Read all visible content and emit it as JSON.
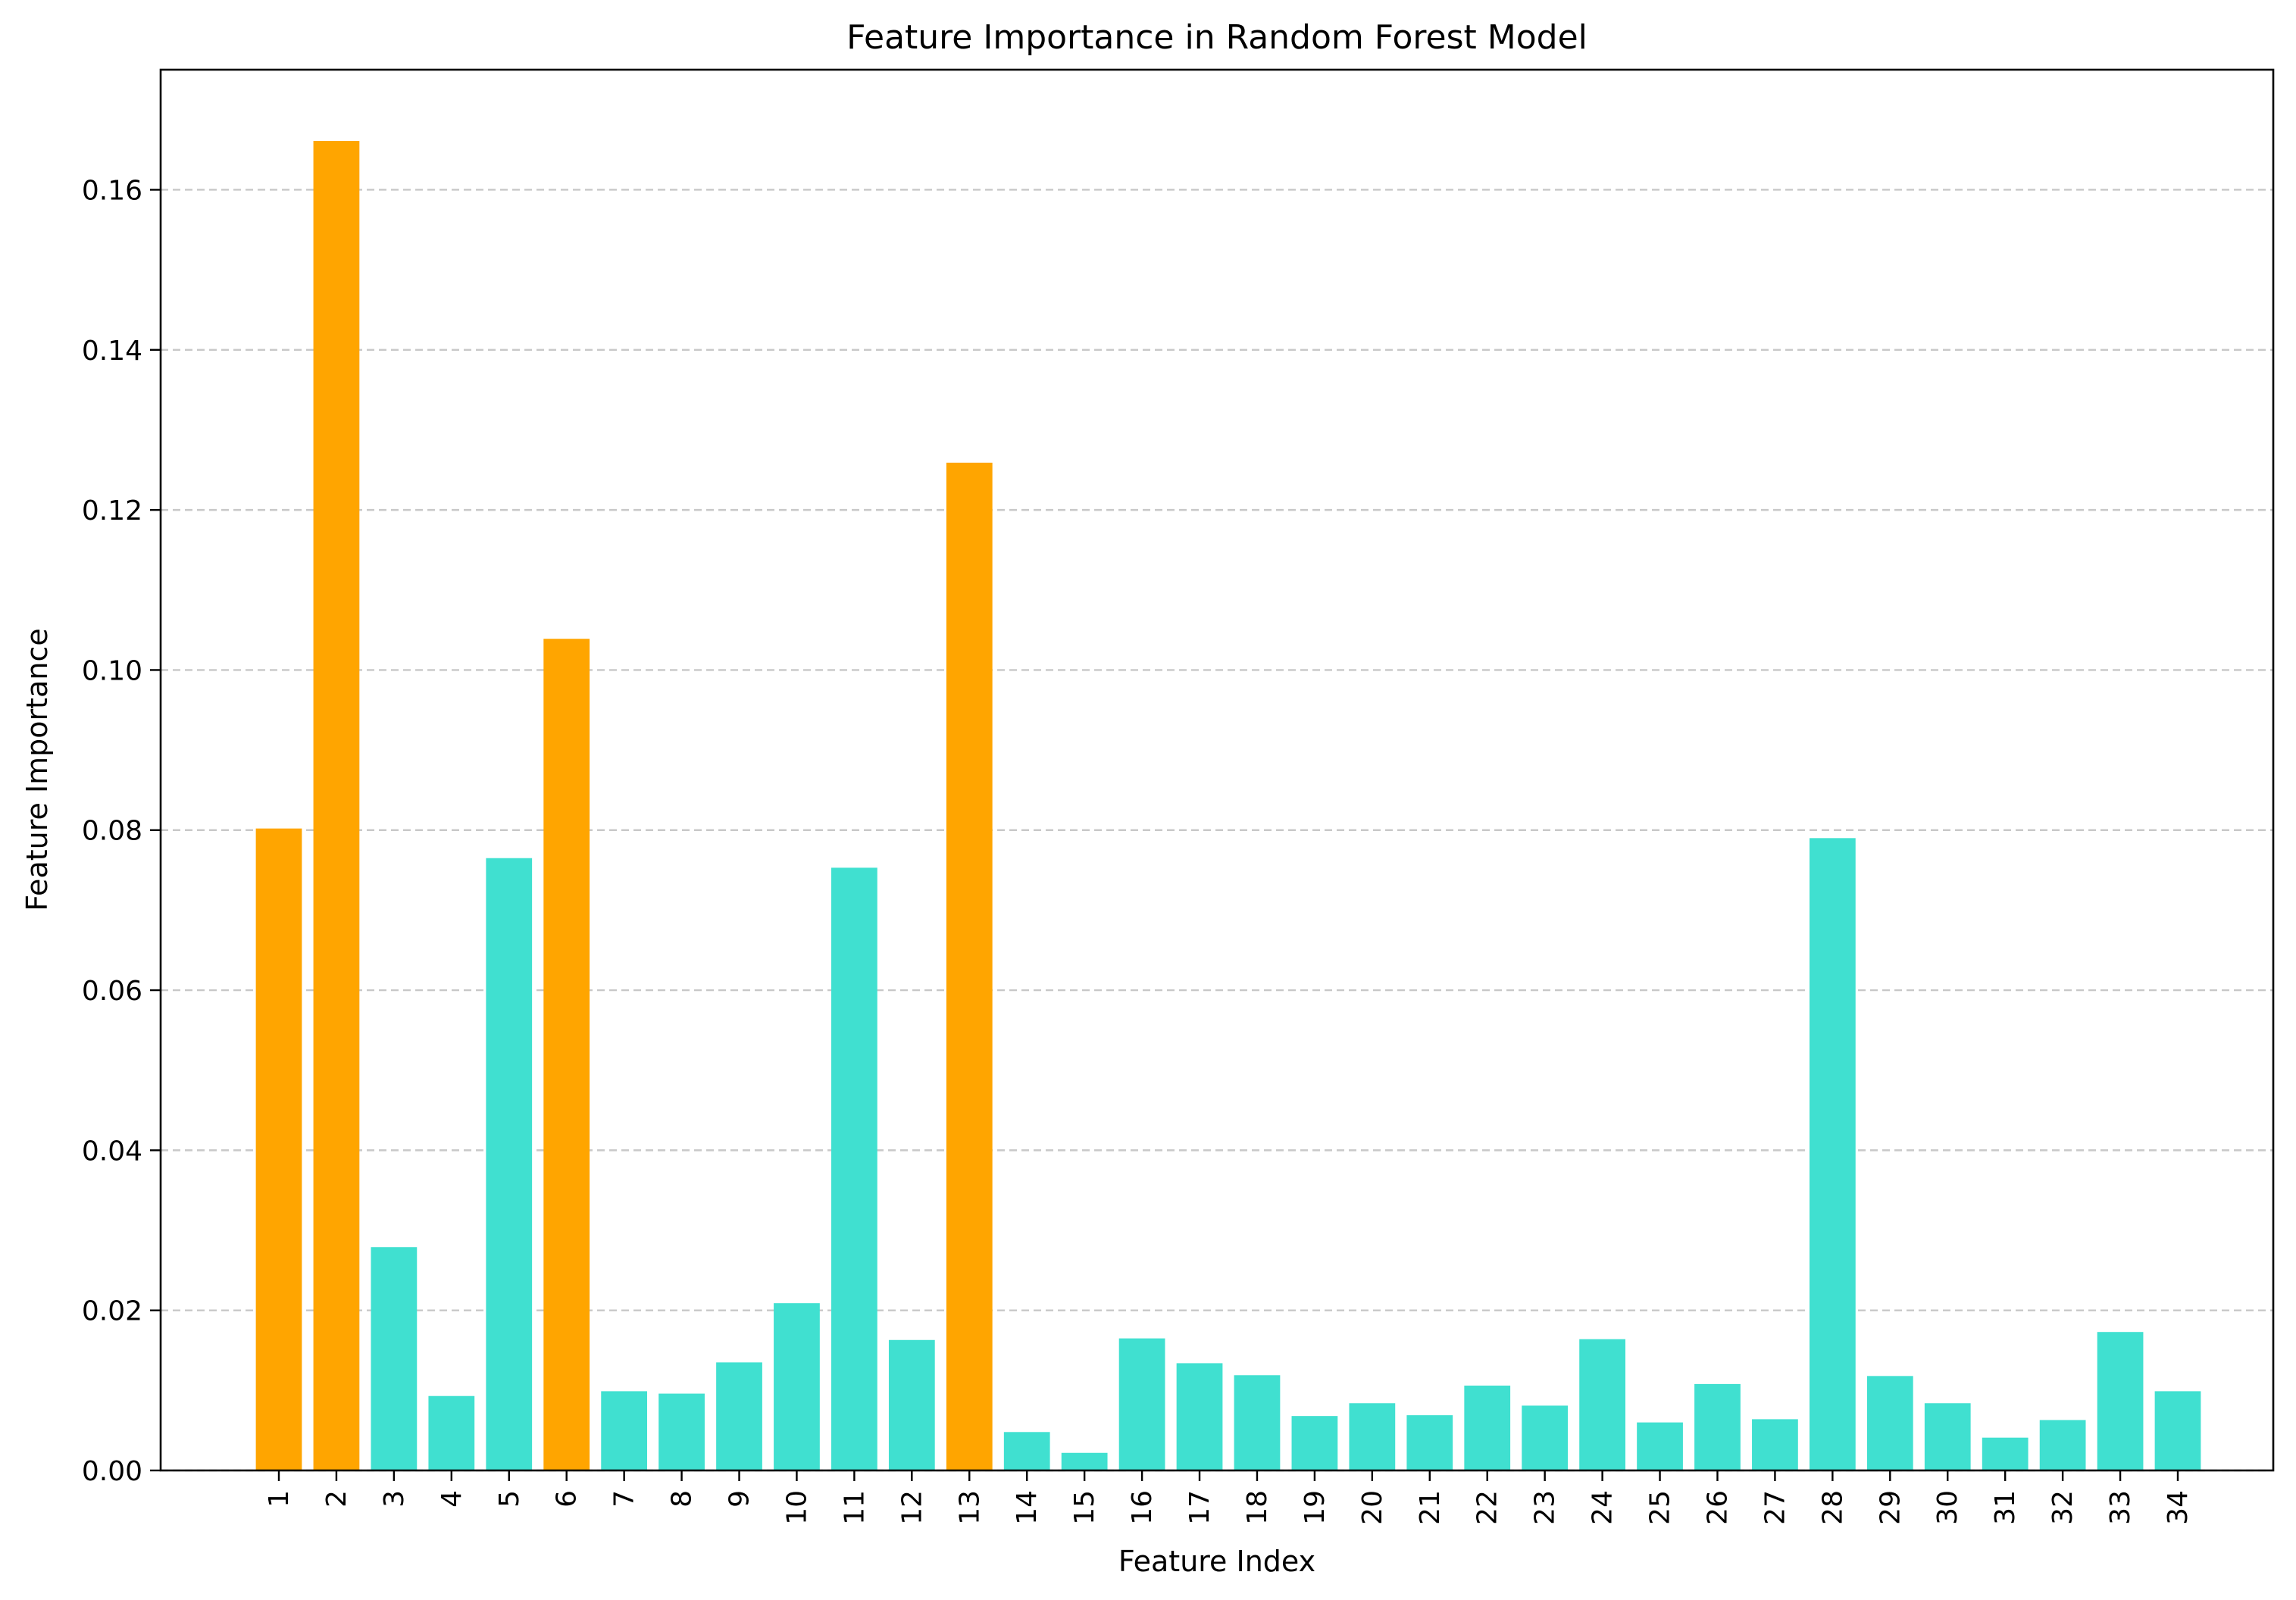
{
  "chart_data": {
    "type": "bar",
    "title": "Feature Importance in Random Forest Model",
    "xlabel": "Feature Index",
    "ylabel": "Feature Importance",
    "ylim": [
      0,
      0.175
    ],
    "yticks": [
      "0.00",
      "0.02",
      "0.04",
      "0.06",
      "0.08",
      "0.10",
      "0.12",
      "0.14",
      "0.16"
    ],
    "grid": "y-dashed",
    "colors": {
      "highlight": "#FFA500",
      "default": "#40E0D0"
    },
    "categories": [
      "1",
      "2",
      "3",
      "4",
      "5",
      "6",
      "7",
      "8",
      "9",
      "10",
      "11",
      "12",
      "13",
      "14",
      "15",
      "16",
      "17",
      "18",
      "19",
      "20",
      "21",
      "22",
      "23",
      "24",
      "25",
      "26",
      "27",
      "28",
      "29",
      "30",
      "31",
      "32",
      "33",
      "34"
    ],
    "values": [
      0.0802,
      0.1661,
      0.0279,
      0.0093,
      0.0765,
      0.1039,
      0.0099,
      0.0096,
      0.0135,
      0.0209,
      0.0753,
      0.0163,
      0.1259,
      0.0048,
      0.0022,
      0.0165,
      0.0134,
      0.0119,
      0.0068,
      0.0084,
      0.0069,
      0.0106,
      0.0081,
      0.0164,
      0.006,
      0.0108,
      0.0064,
      0.079,
      0.0118,
      0.0084,
      0.0041,
      0.0063,
      0.0173,
      0.0099
    ],
    "highlighted": [
      "1",
      "2",
      "6",
      "13"
    ]
  }
}
